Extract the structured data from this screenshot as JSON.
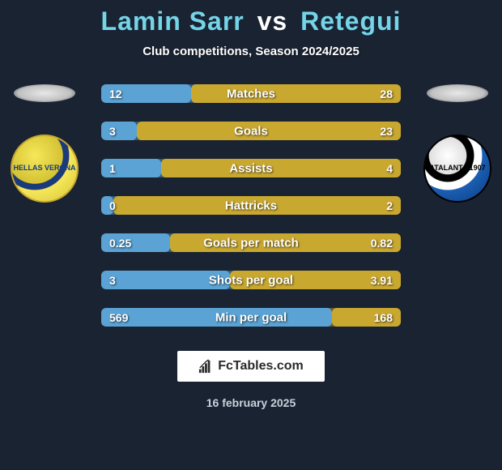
{
  "background_color": "#1a2332",
  "title": {
    "player1": "Lamin Sarr",
    "vs": "vs",
    "player2": "Retegui",
    "player_color": "#74d4e8",
    "vs_color": "#ffffff",
    "fontsize": 32
  },
  "subtitle": "Club competitions, Season 2024/2025",
  "badges": {
    "left": {
      "name": "Hellas Verona",
      "short": "HELLAS VERONA"
    },
    "right": {
      "name": "Atalanta",
      "short": "ATALANTA 1907"
    }
  },
  "bar_style": {
    "left_bg": "#365a7a",
    "left_fg": "#5aa3d4",
    "right_bg": "#6a5a2a",
    "right_fg": "#c9a830",
    "height": 23,
    "radius": 6,
    "label_color": "#ffffff",
    "label_fontsize": 15,
    "value_fontsize": 14
  },
  "stats": [
    {
      "label": "Matches",
      "left_val": "12",
      "right_val": "28",
      "left_pct": 30,
      "right_pct": 70,
      "higher_is_better": "right"
    },
    {
      "label": "Goals",
      "left_val": "3",
      "right_val": "23",
      "left_pct": 12,
      "right_pct": 88,
      "higher_is_better": "right"
    },
    {
      "label": "Assists",
      "left_val": "1",
      "right_val": "4",
      "left_pct": 20,
      "right_pct": 80,
      "higher_is_better": "right"
    },
    {
      "label": "Hattricks",
      "left_val": "0",
      "right_val": "2",
      "left_pct": 4,
      "right_pct": 96,
      "higher_is_better": "right"
    },
    {
      "label": "Goals per match",
      "left_val": "0.25",
      "right_val": "0.82",
      "left_pct": 23,
      "right_pct": 77,
      "higher_is_better": "right"
    },
    {
      "label": "Shots per goal",
      "left_val": "3",
      "right_val": "3.91",
      "left_pct": 43,
      "right_pct": 57,
      "higher_is_better": "left"
    },
    {
      "label": "Min per goal",
      "left_val": "569",
      "right_val": "168",
      "left_pct": 77,
      "right_pct": 23,
      "higher_is_better": "left"
    }
  ],
  "footer": {
    "site": "FcTables.com",
    "date": "16 february 2025"
  }
}
